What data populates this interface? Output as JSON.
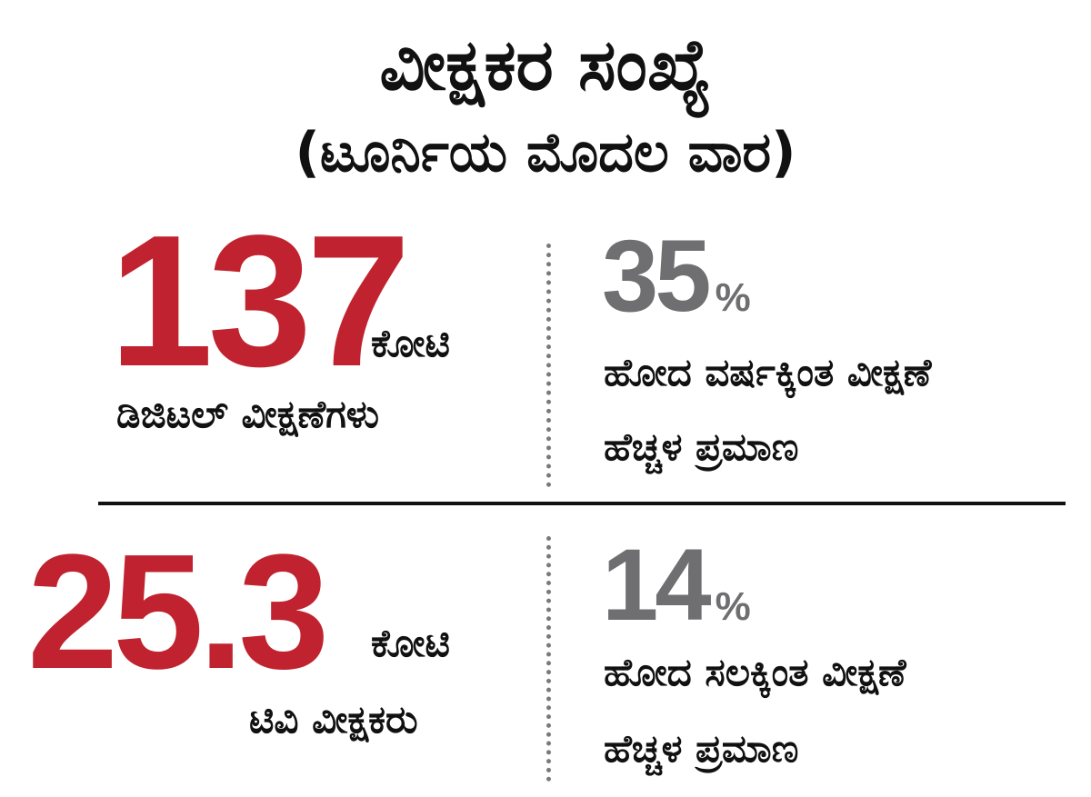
{
  "header": {
    "title": "ವೀಕ್ಷಕರ ಸಂಖ್ಯೆ",
    "subtitle": "(ಟೂರ್ನಿಯ ಮೊದಲ ವಾರ)"
  },
  "stats": [
    {
      "value": "137",
      "unit": "ಕೋಟಿ",
      "label": "ಡಿಜಿಟಲ್ ವೀಕ್ಷಣೆಗಳು",
      "change_value": "35",
      "change_suffix": "%",
      "change_line1": "ಹೋದ ವರ್ಷಕ್ಕಿಂತ ವೀಕ್ಷಣೆ",
      "change_line2": "ಹೆಚ್ಚಳ ಪ್ರಮಾಣ"
    },
    {
      "value": "25.3",
      "unit": "ಕೋಟಿ",
      "label": "ಟಿವಿ ವೀಕ್ಷಕರು",
      "change_value": "14",
      "change_suffix": "%",
      "change_line1": "ಹೋದ ಸಲಕ್ಕಿಂತ ವೀಕ್ಷಣೆ",
      "change_line2": "ಹೆಚ್ಚಳ ಪ್ರಮಾಣ"
    }
  ],
  "colors": {
    "primary_number": "#c0232f",
    "secondary_number": "#6f6f71",
    "text": "#111111"
  }
}
